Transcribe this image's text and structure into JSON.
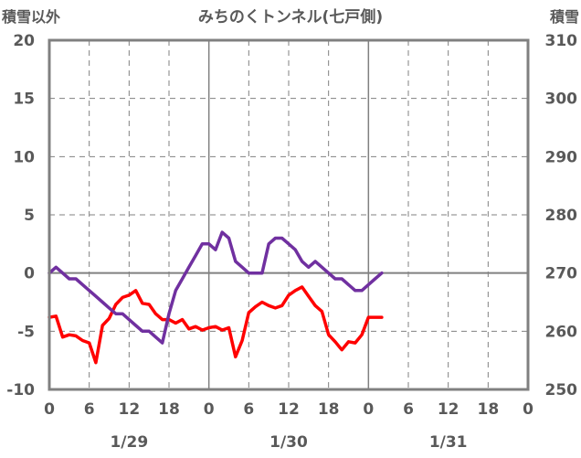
{
  "chart_data": {
    "type": "line",
    "title": "みちのくトンネル(七戸側)",
    "ylabel_left": "積雪以外",
    "ylabel_right": "積雪",
    "ylim_left": [
      -10,
      20
    ],
    "yticks_left": [
      "20",
      "15",
      "10",
      "5",
      "0",
      "-5",
      "-10"
    ],
    "ylim_right": [
      250,
      310
    ],
    "yticks_right": [
      "310",
      "300",
      "290",
      "280",
      "270",
      "260",
      "250"
    ],
    "xlim_hours": [
      0,
      72
    ],
    "xtick_labels": [
      "0",
      "6",
      "12",
      "18",
      "0",
      "6",
      "12",
      "18",
      "0",
      "6",
      "12",
      "18",
      "0"
    ],
    "date_labels": [
      "1/29",
      "1/30",
      "1/31"
    ],
    "grid": true,
    "series": [
      {
        "axis": "left",
        "color": "#ff0000",
        "x": [
          0,
          1,
          2,
          3,
          4,
          5,
          6,
          7,
          8,
          9,
          10,
          11,
          12,
          13,
          14,
          15,
          16,
          17,
          18,
          19,
          20,
          21,
          22,
          23,
          24,
          25,
          26,
          27,
          28,
          29,
          30,
          31,
          32,
          33,
          34,
          35,
          36,
          37,
          38,
          39,
          40,
          41,
          42,
          43,
          44,
          45,
          46,
          47,
          48,
          49,
          50
        ],
        "y": [
          -3.8,
          -3.7,
          -5.5,
          -5.3,
          -5.4,
          -5.8,
          -6.0,
          -7.7,
          -4.5,
          -3.9,
          -2.7,
          -2.1,
          -1.9,
          -1.5,
          -2.6,
          -2.7,
          -3.5,
          -4.0,
          -4.0,
          -4.3,
          -4.0,
          -4.8,
          -4.6,
          -4.9,
          -4.7,
          -4.6,
          -4.9,
          -4.7,
          -7.2,
          -5.8,
          -3.4,
          -2.9,
          -2.5,
          -2.8,
          -3.0,
          -2.8,
          -1.9,
          -1.5,
          -1.2,
          -2.0,
          -2.8,
          -3.3,
          -5.3,
          -5.9,
          -6.6,
          -5.9,
          -6.0,
          -5.3,
          -3.8,
          -3.8,
          -3.8
        ]
      },
      {
        "axis": "right",
        "color": "#7030a0",
        "x": [
          0,
          1,
          2,
          3,
          4,
          5,
          6,
          7,
          8,
          9,
          10,
          11,
          12,
          13,
          14,
          15,
          16,
          17,
          18,
          19,
          20,
          21,
          22,
          23,
          24,
          25,
          26,
          27,
          28,
          29,
          30,
          31,
          32,
          33,
          34,
          35,
          36,
          37,
          38,
          39,
          40,
          41,
          42,
          43,
          44,
          45,
          46,
          47,
          48,
          49,
          50
        ],
        "y": [
          270,
          271,
          270,
          269,
          269,
          268,
          267,
          266,
          265,
          264,
          263,
          263,
          262,
          261,
          260,
          260,
          259,
          258,
          263,
          267,
          269,
          271,
          273,
          275,
          275,
          274,
          277,
          276,
          272,
          271,
          270,
          270,
          270,
          275,
          276,
          276,
          275,
          274,
          272,
          271,
          272,
          271,
          270,
          269,
          269,
          268,
          267,
          267,
          268,
          269,
          270
        ]
      }
    ]
  }
}
